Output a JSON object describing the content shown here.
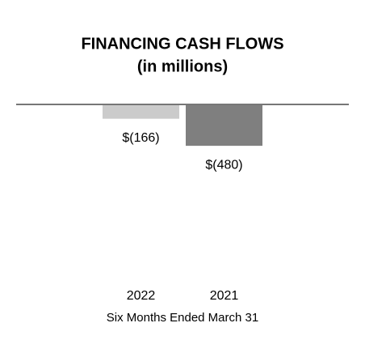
{
  "chart_data": {
    "type": "bar",
    "title": "FINANCING CASH FLOWS",
    "subtitle": "(in millions)",
    "categories": [
      "2022",
      "2021"
    ],
    "values": [
      -166,
      -480
    ],
    "value_labels": [
      "$(166)",
      "$(480)"
    ],
    "colors": [
      "#cbcbcb",
      "#7f7f7f"
    ],
    "x_label": "Six Months Ended March 31"
  }
}
